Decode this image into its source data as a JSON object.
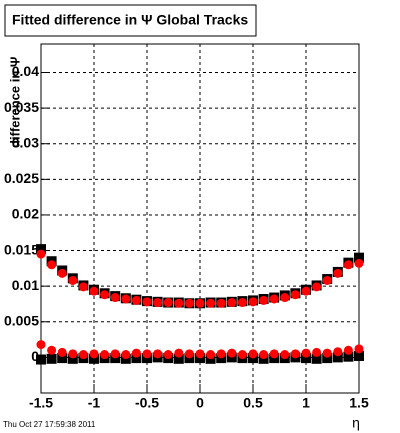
{
  "chart_data": {
    "type": "scatter",
    "title": "Fitted difference in  Ψ   Global Tracks",
    "y_label": "difference in Ψ",
    "x_label": "η",
    "footer": "Thu Oct 27 17:59:38 2011",
    "x": [
      -1.5,
      -1.4,
      -1.3,
      -1.2,
      -1.1,
      -1.0,
      -0.9,
      -0.8,
      -0.7,
      -0.6,
      -0.5,
      -0.4,
      -0.3,
      -0.2,
      -0.1,
      0.0,
      0.1,
      0.2,
      0.3,
      0.4,
      0.5,
      0.6,
      0.7,
      0.8,
      0.9,
      1.0,
      1.1,
      1.2,
      1.3,
      1.4,
      1.5
    ],
    "series": [
      {
        "color": "#000000",
        "marker": "square",
        "values": [
          0.0152,
          0.0135,
          0.0122,
          0.0111,
          0.0101,
          0.0095,
          0.009,
          0.0086,
          0.0083,
          0.0081,
          0.0079,
          0.0078,
          0.0077,
          0.0077,
          0.0076,
          0.0076,
          0.0077,
          0.0077,
          0.0078,
          0.0079,
          0.008,
          0.0082,
          0.0084,
          0.0087,
          0.009,
          0.0095,
          0.0101,
          0.011,
          0.012,
          0.0133,
          0.014
        ]
      },
      {
        "color": "#ff0000",
        "marker": "circle",
        "values": [
          0.0145,
          0.013,
          0.0118,
          0.0108,
          0.0099,
          0.0093,
          0.0088,
          0.0084,
          0.0082,
          0.008,
          0.0078,
          0.0077,
          0.0077,
          0.0076,
          0.0076,
          0.0076,
          0.0076,
          0.0076,
          0.0077,
          0.0077,
          0.0078,
          0.008,
          0.0082,
          0.0084,
          0.0088,
          0.0093,
          0.0099,
          0.0108,
          0.0118,
          0.013,
          0.0132
        ]
      },
      {
        "color": "#000000",
        "marker": "square",
        "values": [
          -0.0003,
          -0.0002,
          -0.0001,
          -0.0002,
          -0.0001,
          -0.0002,
          -0.0001,
          -0.0001,
          -0.0002,
          -0.0001,
          -0.0001,
          0.0,
          -0.0001,
          -0.0002,
          -0.0001,
          -0.0001,
          -0.0002,
          -0.0001,
          0.0,
          -0.0001,
          -0.0001,
          -0.0002,
          -0.0001,
          -0.0001,
          0.0,
          -0.0001,
          -0.0002,
          -0.0001,
          0.0,
          0.0001,
          0.0002
        ]
      },
      {
        "color": "#ff0000",
        "marker": "circle",
        "values": [
          0.0018,
          0.001,
          0.0007,
          0.0005,
          0.0004,
          0.0005,
          0.0004,
          0.0005,
          0.0004,
          0.0006,
          0.0005,
          0.0005,
          0.0004,
          0.0006,
          0.0005,
          0.0005,
          0.0004,
          0.0005,
          0.0006,
          0.0004,
          0.0005,
          0.0004,
          0.0005,
          0.0004,
          0.0005,
          0.0006,
          0.0007,
          0.0006,
          0.0008,
          0.001,
          0.0012
        ]
      }
    ],
    "xlim": [
      -1.5,
      1.5
    ],
    "xticks": [
      -1.5,
      -1,
      -0.5,
      0,
      0.5,
      1,
      1.5
    ],
    "ylim": [
      -0.005,
      0.044
    ],
    "yticks": [
      0,
      0.005,
      0.01,
      0.015,
      0.02,
      0.025,
      0.03,
      0.035,
      0.04
    ],
    "grid": true
  }
}
